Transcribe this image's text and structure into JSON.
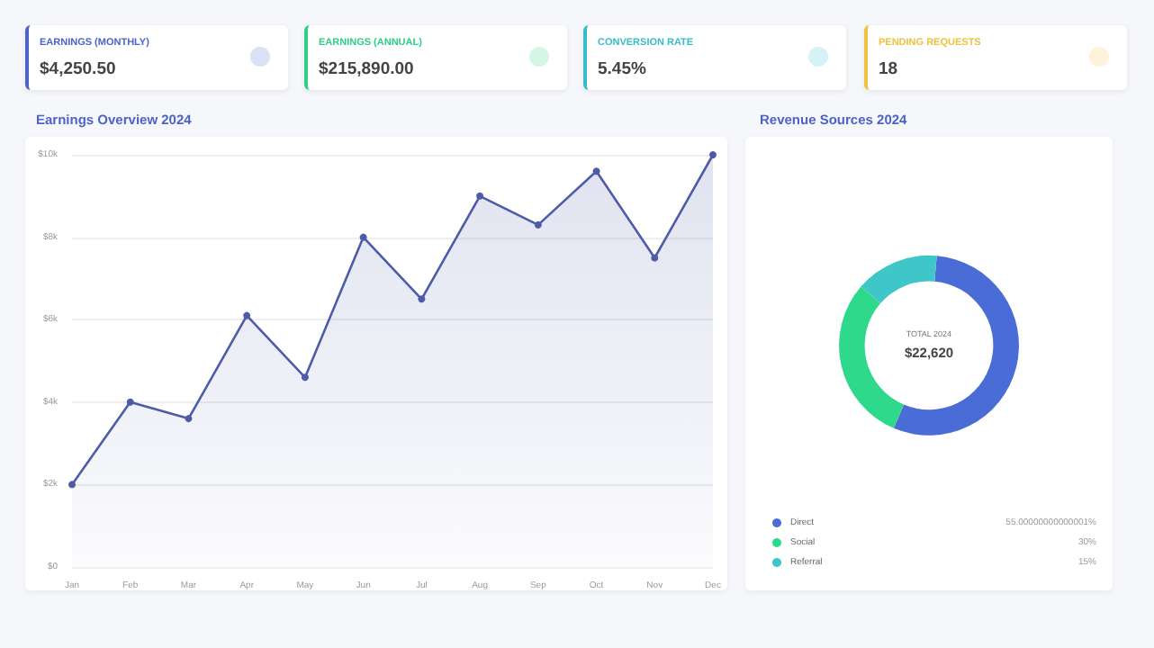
{
  "chart_data": [
    {
      "type": "other",
      "title": "EARNINGS (MONTHLY)",
      "annotations": [
        "$4,250.50"
      ],
      "color": "#4e63c8"
    },
    {
      "type": "other",
      "title": "EARNINGS (ANNUAL)",
      "annotations": [
        "$215,890.00"
      ],
      "color": "#2fcf86"
    },
    {
      "type": "other",
      "title": "CONVERSION RATE",
      "annotations": [
        "5.45%"
      ],
      "color": "#38bcc8"
    },
    {
      "type": "other",
      "title": "PENDING REQUESTS",
      "annotations": [
        "18"
      ],
      "color": "#eec13e"
    },
    {
      "type": "area",
      "title": "Earnings Overview 2024",
      "categories": [
        "Jan",
        "Feb",
        "Mar",
        "Apr",
        "May",
        "Jun",
        "Jul",
        "Aug",
        "Sep",
        "Oct",
        "Nov",
        "Dec"
      ],
      "series": [
        {
          "color": "#4e5ca8",
          "values": [
            2.0,
            4.0,
            3.6,
            6.1,
            4.6,
            8.0,
            6.5,
            9.0,
            8.3,
            9.6,
            7.5,
            10.0
          ]
        }
      ],
      "ylim": [
        0,
        10
      ],
      "yticks": [
        {
          "value": 0,
          "label": "$0"
        },
        {
          "value": 2,
          "label": "$2k"
        },
        {
          "value": 4,
          "label": "$4k"
        },
        {
          "value": 6,
          "label": "$6k"
        },
        {
          "value": 8,
          "label": "$8k"
        },
        {
          "value": 10,
          "label": "$10k"
        }
      ],
      "grid": "y",
      "marker": "circle",
      "line_style": "solid"
    },
    {
      "type": "donut",
      "title": "Revenue Sources 2024",
      "categories": [
        "Direct",
        "Social",
        "Referral"
      ],
      "values": [
        55.00000000000001,
        30,
        15
      ],
      "value_labels": [
        "55.00000000000001%",
        "30%",
        "15%"
      ],
      "colors": [
        "#4a6cd6",
        "#2fd98c",
        "#3fc6c8"
      ],
      "annotations": [
        "TOTAL 2024",
        "$22,620"
      ],
      "legend": "bottom"
    }
  ]
}
